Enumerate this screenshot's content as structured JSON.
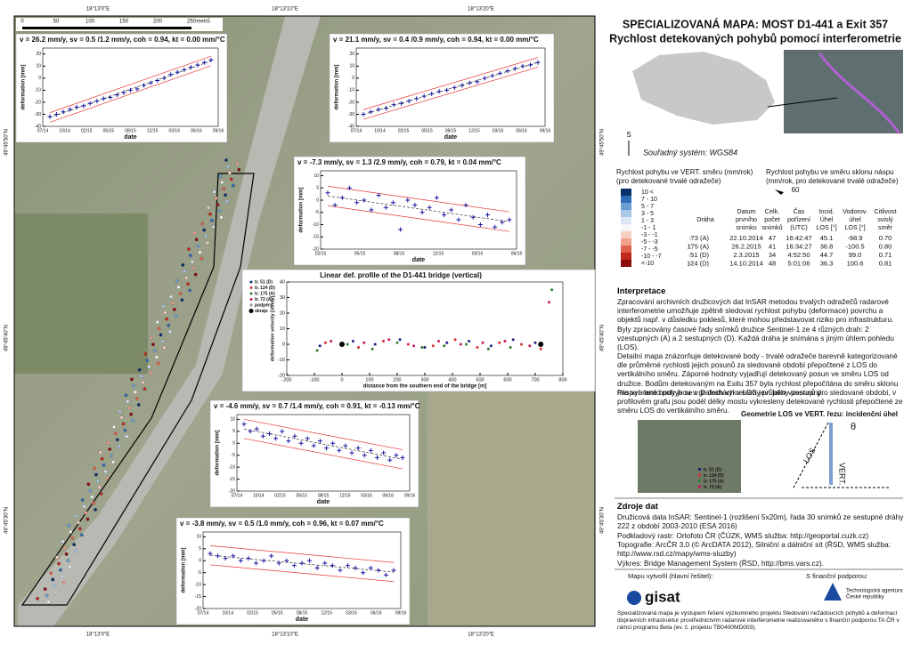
{
  "map": {
    "coords_top": [
      "18°13'0\"E",
      "18°13'10\"E",
      "18°13'20\"E"
    ],
    "coords_bottom": [
      "18°13'0\"E",
      "18°13'10\"E",
      "18°13'20\"E"
    ],
    "coords_left": [
      "49°45'50\"N",
      "49°45'40\"N",
      "49°45'30\"N"
    ],
    "coords_right": [
      "49°45'50\"N",
      "49°45'40\"N",
      "49°45'30\"N"
    ],
    "scale": [
      "0",
      "50",
      "100",
      "150",
      "200",
      "250",
      "metrů"
    ]
  },
  "plots": [
    {
      "title": "v = 26.2 mm/y, sv = 0.5 /1.2 mm/y, coh = 0.94, kt = 0.00 mm/°C",
      "ylabel": "deformation [mm]",
      "xlabel": "date",
      "ylim": [
        -40,
        25
      ],
      "yticks": [
        20,
        10,
        0,
        -10,
        -20,
        -30,
        -40
      ],
      "xticks": [
        "07/14",
        "10/14",
        "02/15",
        "05/15",
        "08/15",
        "12/15",
        "03/16",
        "06/16",
        "09/16"
      ],
      "values": [
        -32,
        -30,
        -28,
        -26,
        -24,
        -23,
        -21,
        -19,
        -17,
        -16,
        -14,
        -12,
        -10,
        -9,
        -6,
        -4,
        -2,
        0,
        3,
        5,
        7,
        9,
        11,
        13,
        15
      ]
    },
    {
      "title": "v = 21.1 mm/y, sv = 0.4 /0.9 mm/y, coh = 0.94, kt = 0.00 mm/°C",
      "ylabel": "deformation [mm]",
      "xlabel": "date",
      "ylim": [
        -40,
        25
      ],
      "yticks": [
        20,
        10,
        0,
        -10,
        -20,
        -30,
        -40
      ],
      "xticks": [
        "07/14",
        "10/14",
        "02/15",
        "05/15",
        "08/15",
        "12/15",
        "03/16",
        "06/16",
        "09/16"
      ],
      "values": [
        -30,
        -28,
        -26,
        -25,
        -22,
        -21,
        -19,
        -17,
        -15,
        -13,
        -11,
        -10,
        -8,
        -6,
        -4,
        -3,
        0,
        2,
        4,
        6,
        8,
        10,
        11,
        13
      ]
    },
    {
      "title": "v = -7.3 mm/y, sv = 1.3 /2.9 mm/y, coh = 0.79, kt = 0.04 mm/°C",
      "ylabel": "deformation [mm]",
      "xlabel": "date",
      "ylim": [
        -20,
        12
      ],
      "yticks": [
        10,
        5,
        0,
        -5,
        -10,
        -15,
        -20
      ],
      "xticks": [
        "02/15",
        "05/15",
        "08/15",
        "12/15",
        "03/16",
        "06/16"
      ],
      "values": [
        3,
        -2,
        1,
        5,
        -1,
        0,
        -4,
        2,
        -3,
        -1,
        -12,
        0,
        -2,
        -5,
        -3,
        1,
        -6,
        -4,
        -8,
        -2,
        -7,
        -10,
        -6,
        -11,
        -9,
        -8
      ]
    },
    {
      "title": "v = -4.6 mm/y, sv = 0.7 /1.4 mm/y, coh = 0.91, kt = -0.13 mm/°C",
      "ylabel": "deformation [mm]",
      "xlabel": "date",
      "ylim": [
        -20,
        12
      ],
      "yticks": [
        10,
        5,
        0,
        -5,
        -10,
        -15,
        -20
      ],
      "xticks": [
        "07/14",
        "10/14",
        "02/15",
        "05/15",
        "08/15",
        "12/15",
        "03/16",
        "06/16",
        "09/16"
      ],
      "values": [
        8,
        5,
        6,
        3,
        4,
        2,
        5,
        1,
        3,
        0,
        2,
        -1,
        1,
        -2,
        0,
        -3,
        -1,
        -4,
        -2,
        -5,
        -3,
        -6,
        -4,
        -7,
        -5,
        -6
      ]
    },
    {
      "title": "v = -3.8 mm/y, sv = 0.5 /1.0 mm/y, coh = 0.96, kt = 0.07 mm/°C",
      "ylabel": "deformation [mm]",
      "xlabel": "date",
      "ylim": [
        -20,
        12
      ],
      "yticks": [
        10,
        5,
        0,
        -5,
        -10,
        -15,
        -20
      ],
      "xticks": [
        "07/14",
        "10/14",
        "02/15",
        "05/15",
        "08/15",
        "12/15",
        "03/16",
        "06/16",
        "09/16"
      ],
      "values": [
        3,
        2,
        1,
        2,
        0,
        1,
        -1,
        0,
        2,
        -1,
        0,
        -2,
        -1,
        0,
        -3,
        -1,
        -2,
        -4,
        -2,
        -3,
        -5,
        -3,
        -4,
        -6,
        -4
      ]
    }
  ],
  "profile": {
    "type": "scatter",
    "title": "Linear def. profile of the D1-441 bridge (vertical)",
    "xlabel": "distance from the southern end of the bridge [m]",
    "ylabel": "deformation velocity [mm/y]",
    "xlim": [
      -200,
      800
    ],
    "ylim": [
      -20,
      40
    ],
    "xticks": [
      -200,
      -100,
      0,
      100,
      200,
      300,
      400,
      500,
      600,
      700,
      800
    ],
    "yticks": [
      -20,
      -10,
      0,
      10,
      20,
      30,
      40
    ],
    "series": [
      {
        "name": "tr. 51 (D)",
        "color": "#1a237e",
        "x": [
          -80,
          40,
          120,
          210,
          300,
          380,
          460,
          540,
          620,
          700
        ],
        "values": [
          -1,
          2,
          0,
          3,
          -2,
          1,
          2,
          -1,
          3,
          1
        ]
      },
      {
        "name": "tr. 124 (D)",
        "color": "#d32f2f",
        "x": [
          -60,
          60,
          150,
          240,
          330,
          410,
          490,
          570,
          650,
          720
        ],
        "values": [
          1,
          -2,
          2,
          0,
          -1,
          3,
          -2,
          1,
          0,
          -3
        ]
      },
      {
        "name": "tr. 175 (A)",
        "color": "#2e7d32",
        "x": [
          -90,
          20,
          110,
          200,
          290,
          370,
          450,
          530,
          610,
          760
        ],
        "values": [
          -4,
          0,
          -3,
          1,
          -2,
          -1,
          0,
          -3,
          -2,
          35
        ]
      },
      {
        "name": "tr. 73 (A)",
        "color": "#c2185b",
        "x": [
          -40,
          80,
          170,
          260,
          350,
          430,
          510,
          590,
          680,
          750
        ],
        "values": [
          2,
          1,
          3,
          -1,
          2,
          0,
          1,
          2,
          -1,
          27
        ]
      }
    ],
    "legend_extra": [
      "podpěry",
      "okraje"
    ],
    "okraje_x": [
      0,
      720
    ],
    "okraje_values": [
      0,
      0
    ]
  },
  "panel": {
    "title": [
      "SPECIALIZOVANÁ MAPA: MOST D1-441 a Exit 357",
      "Rychlost detekovaných pohybů pomocí interferometrie"
    ],
    "north": "S",
    "crs": "Souřadný systém:  WGS84",
    "legend1": [
      "Rychlost pohybu ve VERT. směru (mm/rok)",
      "(pro detekované trvalé odražeče)"
    ],
    "legend2": [
      "Rychlost pohybu ve směru sklonu náspu",
      "(mm/rok, pro detekované trvalé odražeče)"
    ],
    "legend2_value": "60",
    "ramp": [
      "10 <",
      "7 - 10",
      "5 - 7",
      "3 - 5",
      "1 - 3",
      "-1 - 1",
      "-3 - -1",
      "-5 - -3",
      "-7 - -5",
      "-10 - -7",
      "<-10"
    ],
    "ramp_colors": [
      "#08306b",
      "#2e6db4",
      "#6a9fd4",
      "#a9c8e8",
      "#dbe7f4",
      "#f7f7f7",
      "#f8d0c4",
      "#f0a08a",
      "#e0604c",
      "#c0281e",
      "#8b0a0a"
    ],
    "table_head": [
      [
        "Dráha"
      ],
      [
        "Datum",
        "prvního",
        "snímku"
      ],
      [
        "Celk.",
        "počet",
        "snímků"
      ],
      [
        "Čas",
        "pořízení",
        "(UTC)"
      ],
      [
        "Incid.",
        "Úhel",
        "LOS [°]"
      ],
      [
        "Vodorov.",
        "úhel",
        "LOS [°]"
      ],
      [
        "Citlivost",
        "svislý",
        "směr"
      ]
    ],
    "table_rows": [
      [
        "73 (A)",
        "22.10.2014",
        "47",
        "16:42:47",
        "45.1",
        "-98.9",
        "0.70"
      ],
      [
        "175 (A)",
        "26.2.2015",
        "41",
        "16:34:27",
        "36.8",
        "-100.5",
        "0.80"
      ],
      [
        "51 (D)",
        "2.3.2015",
        "34",
        "4:52:50",
        "44.7",
        "99.0",
        "0.71"
      ],
      [
        "124 (D)",
        "14.10.2014",
        "48",
        "5:01:06",
        "36.3",
        "100.6",
        "0.81"
      ]
    ],
    "interp_head": "Interpretace",
    "interp": [
      "Zpracování archivních družicových dat InSAR metodou trvalých odražečů radarové interferometrie umožňuje zpětně sledovat rychlost pohybu (deformace) povrchu a objektů např. v důsledku poklesů, které mohou představovat riziko pro infrastrukturu. Byly zpracovány časové řady snímků družice Sentinel-1 ze 4 různých drah: 2 vzestupných (A) a 2 sestupných (D). Každá dráha je snímána s jiným úhlem pohledu (LOS).",
      "Detailní mapa znázorňuje detekované body - trvalé odražeče barevně kategorizované dle průměrné rychlosti jejich posunů za sledované období přepočtené z LOS do vertikálního směru. Záporné hodnoty vyjadřují detekovaný posun ve směru LOS od družice. Bodům detekovaným na Exitu 357 byla rychlost přepočítána do směru sklonu náspu - tento pohyb se v D drahách v LOS jeví jako vzestupný.",
      "Pro vybrané body jsou v grafech vykresleny průběhy posunů pro sledované období, v profilovém grafu jsou podél délky mostu vykresleny detekované rychlosti přepočtené ze směru LOS do vertikálního směru."
    ],
    "geom": "Geometrie LOS ve VERT. řezu: incidenční úhel",
    "theta": "θ",
    "los": "LOS",
    "vert": "VERT.",
    "geom_legend": [
      "tr. 51 (D)",
      "tr. 124 (D)",
      "tr. 175 (A)",
      "tr. 73 (A)"
    ],
    "src_head": "Zdroje dat",
    "src": [
      "Družicová data InSAR: Sentinel-1 (rozlišení 5x20m), řada 30 snímků ze sestupné dráhy 222 z období 2003-2010 (ESA 2016)",
      "Podkladový rastr: Ortofoto ČR (ČÚZK, WMS služba: http://geoportal.cuzk.cz)",
      "Topografie: ArcČR 3.0 (© ArcDATA 2012), Silniční a dálniční sít (ŘSD, WMS služba: http://www.rsd.cz/mapy/wms-sluzby)",
      "Výkres: Bridge Management System  (ŘSD, http://bms.vars.cz)."
    ],
    "made_by": "Mapu vytvořil (hlavní řešitel):",
    "support": "S finanční podporou:",
    "gisat": "gisat",
    "tacr": [
      "Technologická agentura",
      "České republiky"
    ],
    "footer": "Specializovaná mapa je výstupem řešení výzkumného projektu Sledování nežádoucích pohybů a deformací dopravních infrastruktur prostřednictvím radarové interferometrie realizovaného s finanční podporou TA ČR v rámci programu Beta (ev. č. projektu TB0400MD003)."
  }
}
